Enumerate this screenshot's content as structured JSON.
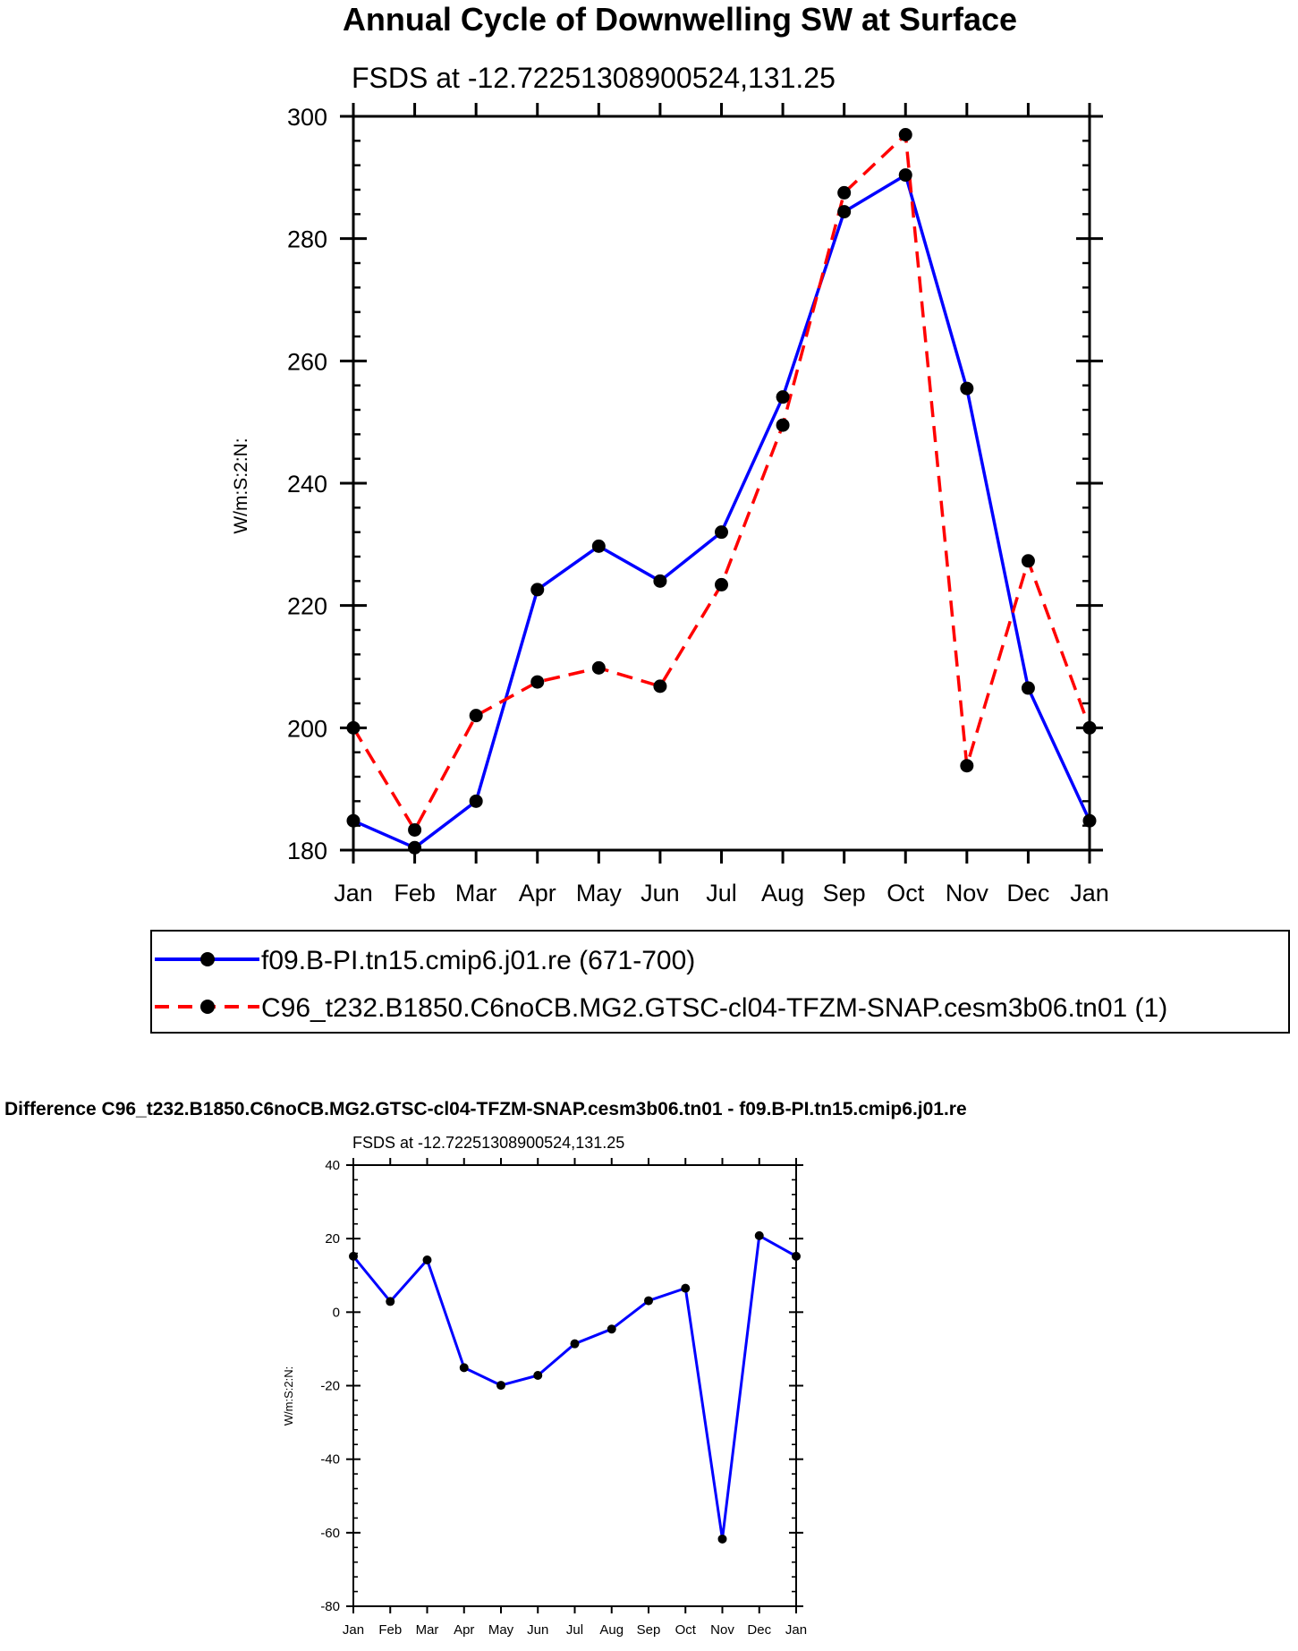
{
  "chart_data": [
    {
      "type": "line",
      "title": "Annual Cycle of Downwelling SW at Surface",
      "subtitle": "FSDS at -12.72251308900524,131.25",
      "ylabel": "W/m:S:2:N:",
      "xlabel": "",
      "categories": [
        "Jan",
        "Feb",
        "Mar",
        "Apr",
        "May",
        "Jun",
        "Jul",
        "Aug",
        "Sep",
        "Oct",
        "Nov",
        "Dec",
        "Jan"
      ],
      "ylim": [
        180,
        300
      ],
      "yticks": [
        "180",
        "200",
        "220",
        "240",
        "260",
        "280",
        "300"
      ],
      "series": [
        {
          "name": "f09.B-PI.tn15.cmip6.j01.re (671-700)",
          "color": "#0000ff",
          "dash": "solid",
          "values": [
            184.8,
            180.4,
            188.0,
            222.6,
            229.7,
            224.0,
            232.0,
            254.1,
            284.4,
            290.4,
            255.5,
            206.5,
            184.8
          ]
        },
        {
          "name": "C96_t232.B1850.C6noCB.MG2.GTSC-cl04-TFZM-SNAP.cesm3b06.tn01 (1)",
          "color": "#ff0000",
          "dash": "dashed",
          "values": [
            200.0,
            183.3,
            202.0,
            207.5,
            209.8,
            206.8,
            223.4,
            249.5,
            287.5,
            297.0,
            193.8,
            227.3,
            200.0
          ]
        }
      ]
    },
    {
      "type": "line",
      "title": "Difference C96_t232.B1850.C6noCB.MG2.GTSC-cl04-TFZM-SNAP.cesm3b06.tn01 - f09.B-PI.tn15.cmip6.j01.re",
      "subtitle": "FSDS at -12.72251308900524,131.25",
      "ylabel": "W/m:S:2:N:",
      "xlabel": "",
      "categories": [
        "Jan",
        "Feb",
        "Mar",
        "Apr",
        "May",
        "Jun",
        "Jul",
        "Aug",
        "Sep",
        "Oct",
        "Nov",
        "Dec",
        "Jan"
      ],
      "ylim": [
        -80,
        40
      ],
      "yticks": [
        "-80",
        "-60",
        "-40",
        "-20",
        "0",
        "20",
        "40"
      ],
      "series": [
        {
          "name": "Difference",
          "color": "#0000ff",
          "dash": "solid",
          "values": [
            15.2,
            2.9,
            14.2,
            -15.1,
            -19.9,
            -17.2,
            -8.6,
            -4.6,
            3.1,
            6.5,
            -61.7,
            20.8,
            15.2
          ]
        }
      ]
    }
  ]
}
